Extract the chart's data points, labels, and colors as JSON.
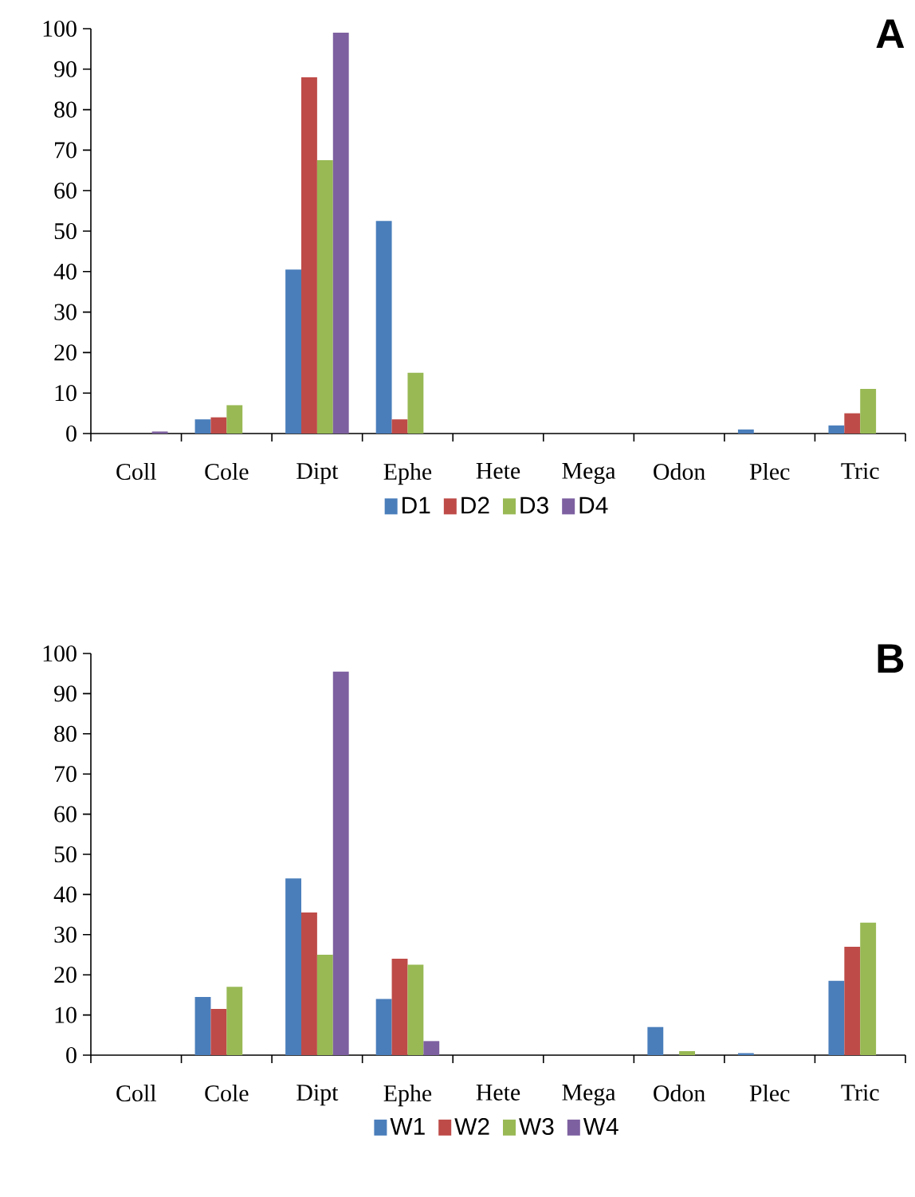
{
  "chart_data": [
    {
      "type": "bar",
      "title": "A",
      "categories": [
        "Coll",
        "Cole",
        "Dipt",
        "Ephe",
        "Hete",
        "Mega",
        "Odon",
        "Plec",
        "Tric"
      ],
      "series": [
        {
          "name": "D1",
          "color": "#4a7ebb",
          "values": [
            0,
            3.5,
            40.5,
            52.5,
            0,
            0,
            0,
            1,
            2
          ]
        },
        {
          "name": "D2",
          "color": "#be4b48",
          "values": [
            0,
            4,
            88,
            3.5,
            0,
            0,
            0,
            0,
            5
          ]
        },
        {
          "name": "D3",
          "color": "#98b954",
          "values": [
            0,
            7,
            67.5,
            15,
            0,
            0,
            0,
            0,
            11
          ]
        },
        {
          "name": "D4",
          "color": "#7d60a0",
          "values": [
            0.5,
            0,
            99,
            0,
            0,
            0,
            0,
            0,
            0
          ]
        }
      ],
      "ylim": [
        0,
        100
      ],
      "yticks": [
        0,
        10,
        20,
        30,
        40,
        50,
        60,
        70,
        80,
        90,
        100
      ],
      "grid": false,
      "legend": "bottom"
    },
    {
      "type": "bar",
      "title": "B",
      "categories": [
        "Coll",
        "Cole",
        "Dipt",
        "Ephe",
        "Hete",
        "Mega",
        "Odon",
        "Plec",
        "Tric"
      ],
      "series": [
        {
          "name": "W1",
          "color": "#4a7ebb",
          "values": [
            0,
            14.5,
            44,
            14,
            0,
            0,
            7,
            0.5,
            18.5
          ]
        },
        {
          "name": "W2",
          "color": "#be4b48",
          "values": [
            0,
            11.5,
            35.5,
            24,
            0,
            0,
            0,
            0,
            27
          ]
        },
        {
          "name": "W3",
          "color": "#98b954",
          "values": [
            0,
            17,
            25,
            22.5,
            0,
            0,
            1,
            0,
            33
          ]
        },
        {
          "name": "W4",
          "color": "#7d60a0",
          "values": [
            0,
            0,
            95.5,
            3.5,
            0,
            0,
            0,
            0,
            0
          ]
        }
      ],
      "ylim": [
        0,
        100
      ],
      "yticks": [
        0,
        10,
        20,
        30,
        40,
        50,
        60,
        70,
        80,
        90,
        100
      ],
      "grid": false,
      "legend": "bottom"
    }
  ]
}
